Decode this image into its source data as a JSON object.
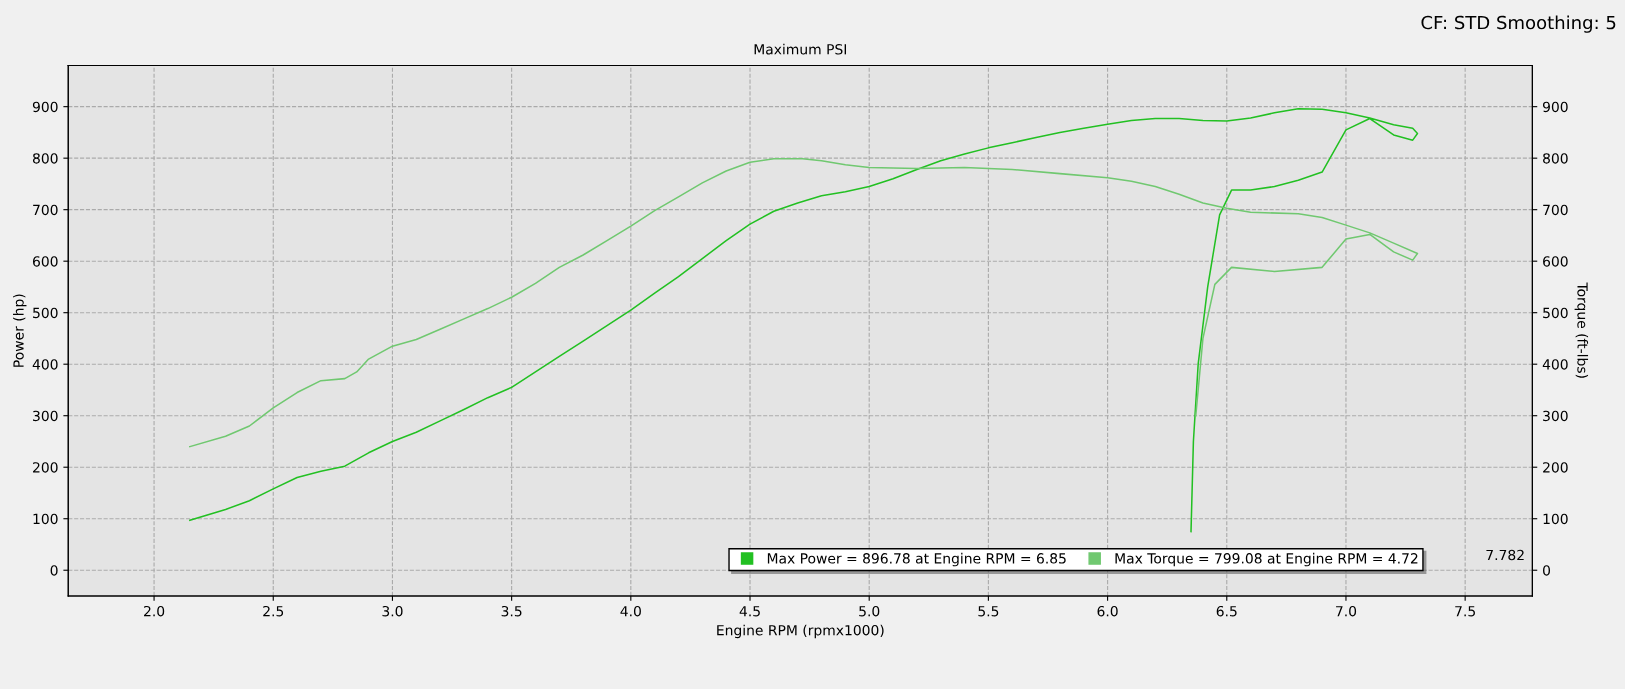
{
  "chart_data": {
    "type": "line",
    "title": "Maximum PSI",
    "xlabel": "Engine RPM (rpmx1000)",
    "ylabel": "Power (hp)",
    "y2label": "Torque (ft-lbs)",
    "annotations": [
      "CF: STD Smoothing: 5",
      "7.782"
    ],
    "xlim": [
      1.64,
      7.782
    ],
    "xticks": [
      {
        "value": 2,
        "label": "2.0"
      },
      2.5,
      {
        "value": 3,
        "label": "3.0"
      },
      3.5,
      {
        "value": 4,
        "label": "4.0"
      },
      4.5,
      {
        "value": 5,
        "label": "5.0"
      },
      5.5,
      {
        "value": 6,
        "label": "6.0"
      },
      6.5,
      {
        "value": 7,
        "label": "7.0"
      },
      7.5
    ],
    "ylim": [
      -50,
      980
    ],
    "yticks": [
      0,
      100,
      200,
      300,
      400,
      500,
      600,
      700,
      800,
      900
    ],
    "y2lim": [
      -50,
      980
    ],
    "y2ticks": [
      0,
      100,
      200,
      300,
      400,
      500,
      600,
      700,
      800,
      900
    ],
    "grid": true,
    "legend": "bottom right",
    "marker": "none",
    "line_style": "solid",
    "series": [
      {
        "name": "Max Power = 896.78 at Engine RPM = 6.85",
        "color": "#22c022",
        "x": [
          2.15,
          2.3,
          2.4,
          2.5,
          2.6,
          2.7,
          2.8,
          2.9,
          3.0,
          3.1,
          3.2,
          3.3,
          3.4,
          3.5,
          3.6,
          3.7,
          3.8,
          3.9,
          4.0,
          4.1,
          4.2,
          4.3,
          4.4,
          4.5,
          4.6,
          4.7,
          4.8,
          4.9,
          5.0,
          5.1,
          5.2,
          5.3,
          5.4,
          5.5,
          5.6,
          5.7,
          5.8,
          5.9,
          6.0,
          6.1,
          6.2,
          6.3,
          6.4,
          6.5,
          6.6,
          6.7,
          6.8,
          6.9,
          7.0,
          7.1,
          7.2,
          7.28,
          7.3,
          7.28,
          7.2,
          7.1,
          7.0,
          6.9,
          6.8,
          6.7,
          6.6,
          6.52,
          6.47,
          6.42,
          6.38,
          6.36,
          6.35
        ],
        "values": [
          97,
          118,
          135,
          158,
          180,
          192,
          202,
          228,
          250,
          268,
          290,
          312,
          335,
          355,
          385,
          415,
          445,
          475,
          505,
          538,
          570,
          605,
          640,
          672,
          697,
          713,
          727,
          735,
          745,
          760,
          778,
          795,
          808,
          820,
          830,
          840,
          850,
          858,
          866,
          873,
          877,
          877,
          873,
          872,
          878,
          888,
          896,
          895,
          888,
          878,
          865,
          858,
          848,
          835,
          845,
          877,
          855,
          773,
          757,
          745,
          738,
          738,
          690,
          550,
          400,
          250,
          75
        ]
      },
      {
        "name": "Max Torque = 799.08 at Engine RPM = 4.72",
        "color": "#70c870",
        "x": [
          2.15,
          2.3,
          2.4,
          2.5,
          2.6,
          2.7,
          2.8,
          2.85,
          2.9,
          3.0,
          3.1,
          3.2,
          3.3,
          3.4,
          3.5,
          3.6,
          3.7,
          3.8,
          3.9,
          4.0,
          4.1,
          4.2,
          4.3,
          4.4,
          4.5,
          4.6,
          4.72,
          4.8,
          4.9,
          5.0,
          5.2,
          5.4,
          5.6,
          5.8,
          6.0,
          6.1,
          6.2,
          6.3,
          6.4,
          6.5,
          6.6,
          6.8,
          6.9,
          7.0,
          7.1,
          7.2,
          7.3,
          7.28,
          7.2,
          7.1,
          7.0,
          6.9,
          6.7,
          6.52,
          6.45,
          6.4,
          6.37
        ],
        "values": [
          240,
          260,
          280,
          315,
          345,
          368,
          372,
          385,
          410,
          435,
          448,
          468,
          488,
          508,
          530,
          557,
          588,
          612,
          640,
          668,
          698,
          725,
          752,
          775,
          792,
          799,
          799,
          795,
          787,
          782,
          780,
          782,
          778,
          770,
          762,
          755,
          745,
          730,
          713,
          703,
          695,
          692,
          685,
          670,
          655,
          635,
          615,
          602,
          618,
          652,
          643,
          588,
          580,
          588,
          555,
          450,
          300
        ]
      }
    ]
  }
}
